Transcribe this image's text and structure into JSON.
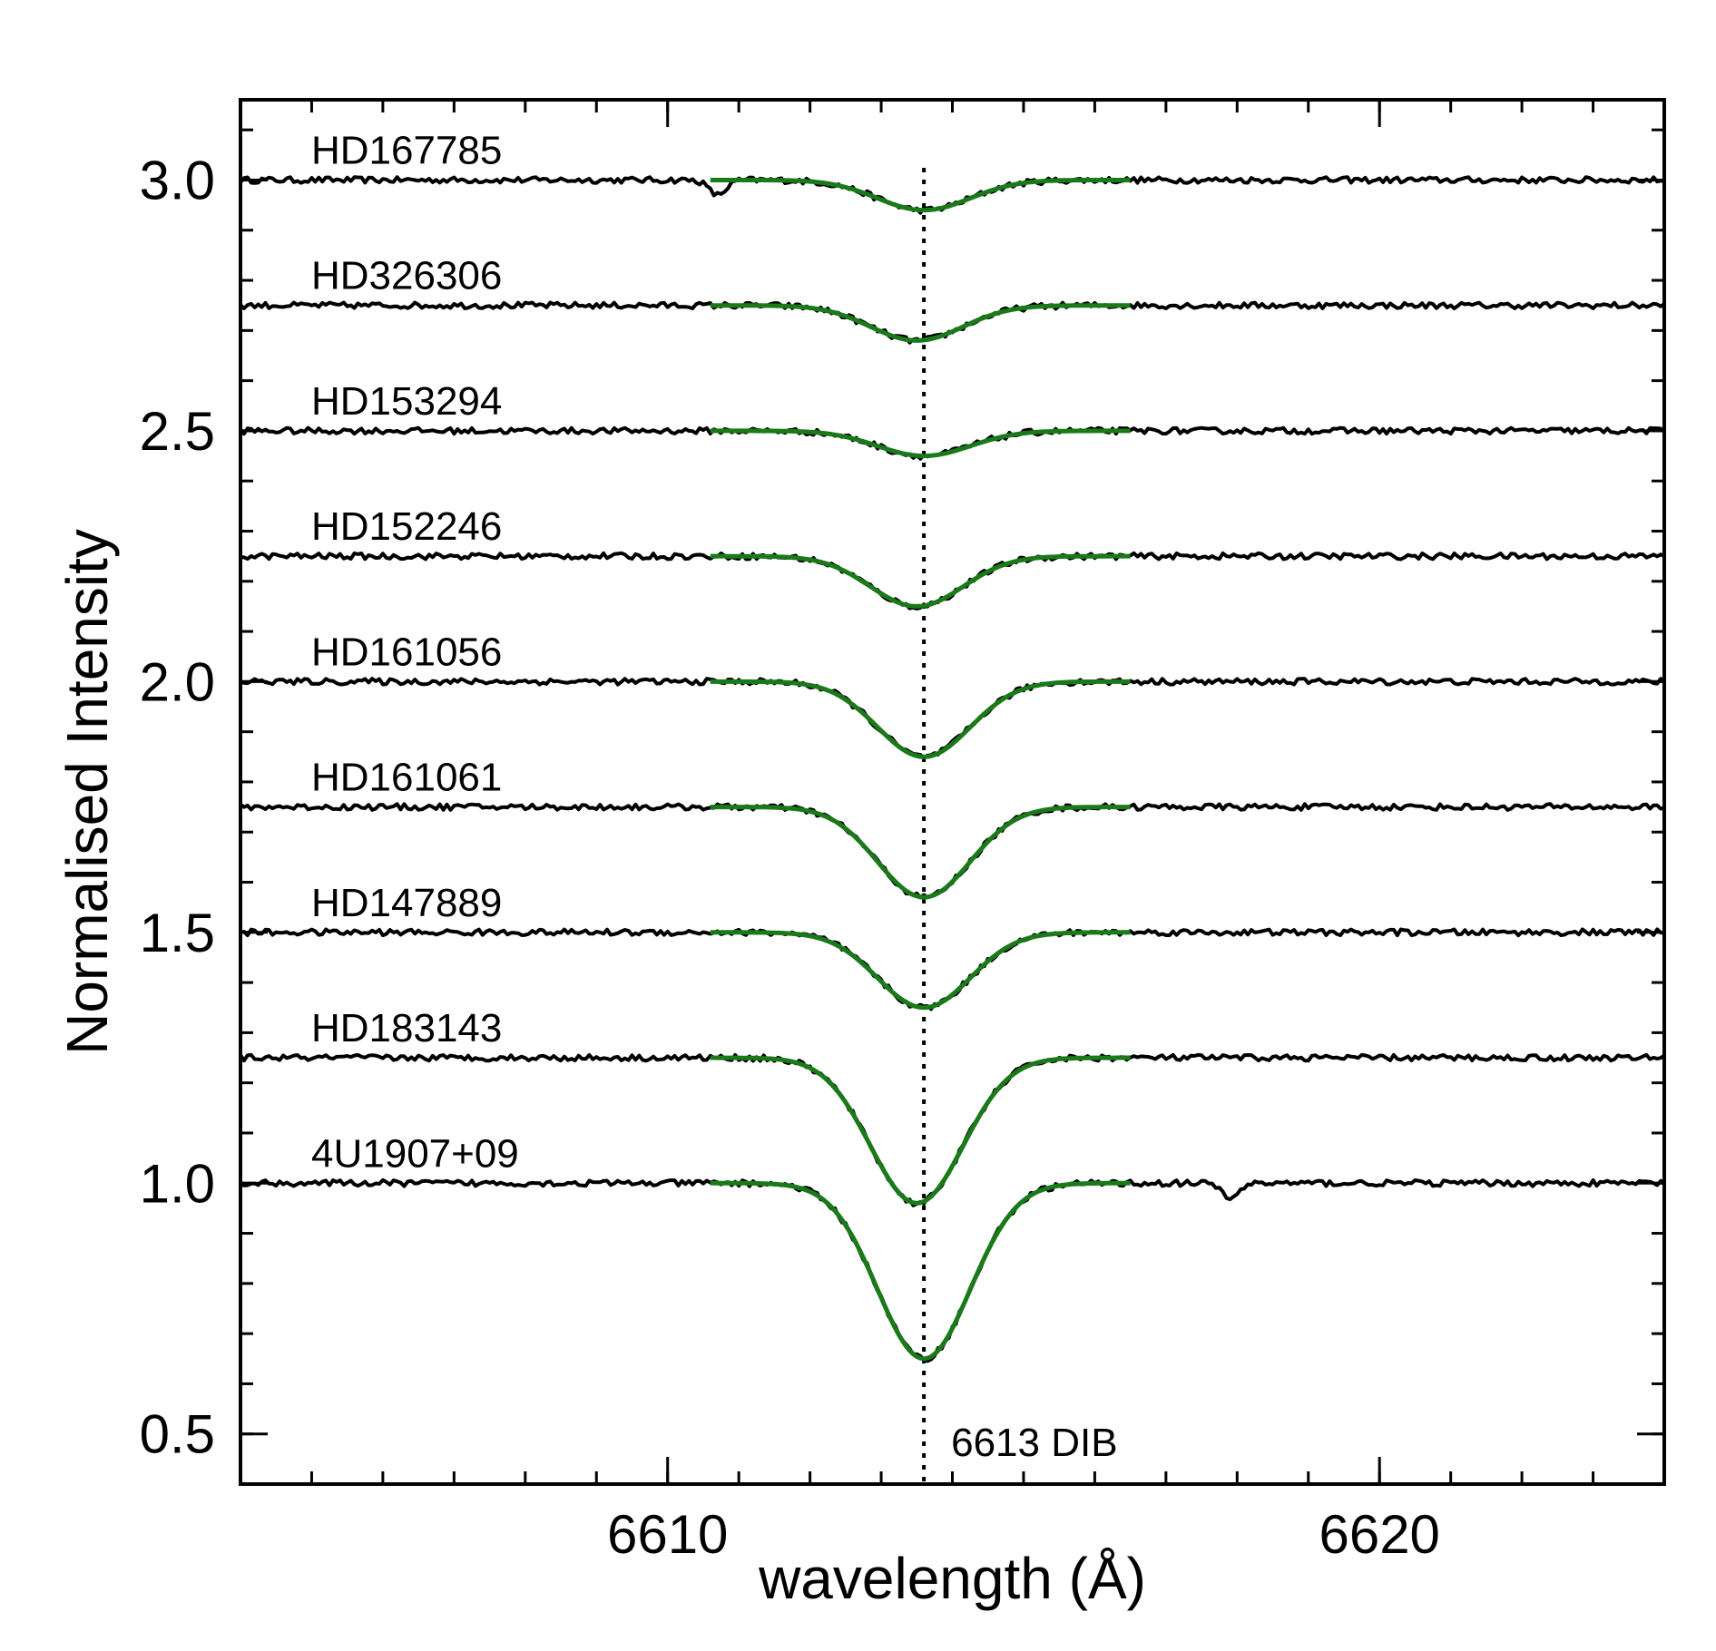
{
  "chart_data": {
    "type": "line",
    "title": "",
    "xlabel": "wavelength (Å)",
    "ylabel": "Normalised Intensity",
    "xlim": [
      6604,
      6624
    ],
    "ylim": [
      0.4,
      3.16
    ],
    "x_ticks": [
      6610,
      6620
    ],
    "x_tick_labels": [
      "6610",
      "6620"
    ],
    "y_ticks": [
      0.5,
      1.0,
      1.5,
      2.0,
      2.5,
      3.0
    ],
    "y_tick_labels": [
      "0.5",
      "1.0",
      "1.5",
      "2.0",
      "2.5",
      "3.0"
    ],
    "x_minor_step": 1,
    "y_minor_step": 0.1,
    "grid": false,
    "fit_range": [
      6610.6,
      6616.5
    ],
    "fit_width": 0.65,
    "series": [
      {
        "name": "HD167785",
        "continuum": 3.0,
        "depth": 0.06,
        "center": 6613.6,
        "extra_dip": {
          "x": 6610.7,
          "depth": 0.03
        }
      },
      {
        "name": "HD326306",
        "continuum": 2.75,
        "depth": 0.07,
        "center": 6613.5
      },
      {
        "name": "HD153294",
        "continuum": 2.5,
        "depth": 0.05,
        "center": 6613.6
      },
      {
        "name": "HD152246",
        "continuum": 2.25,
        "depth": 0.1,
        "center": 6613.5
      },
      {
        "name": "HD161056",
        "continuum": 2.0,
        "depth": 0.15,
        "center": 6613.6
      },
      {
        "name": "HD161061",
        "continuum": 1.75,
        "depth": 0.18,
        "center": 6613.6
      },
      {
        "name": "HD147889",
        "continuum": 1.5,
        "depth": 0.15,
        "center": 6613.6
      },
      {
        "name": "HD183143",
        "continuum": 1.25,
        "depth": 0.29,
        "center": 6613.5
      },
      {
        "name": "4U1907+09",
        "continuum": 1.0,
        "depth": 0.35,
        "center": 6613.6,
        "extra_dip": {
          "x": 6617.9,
          "depth": 0.03
        }
      }
    ],
    "reference_line": {
      "x": 6613.6,
      "label": "6613 DIB",
      "style": "dotted"
    },
    "colors": {
      "data": "#000000",
      "fit": "#1a7a1a"
    }
  }
}
